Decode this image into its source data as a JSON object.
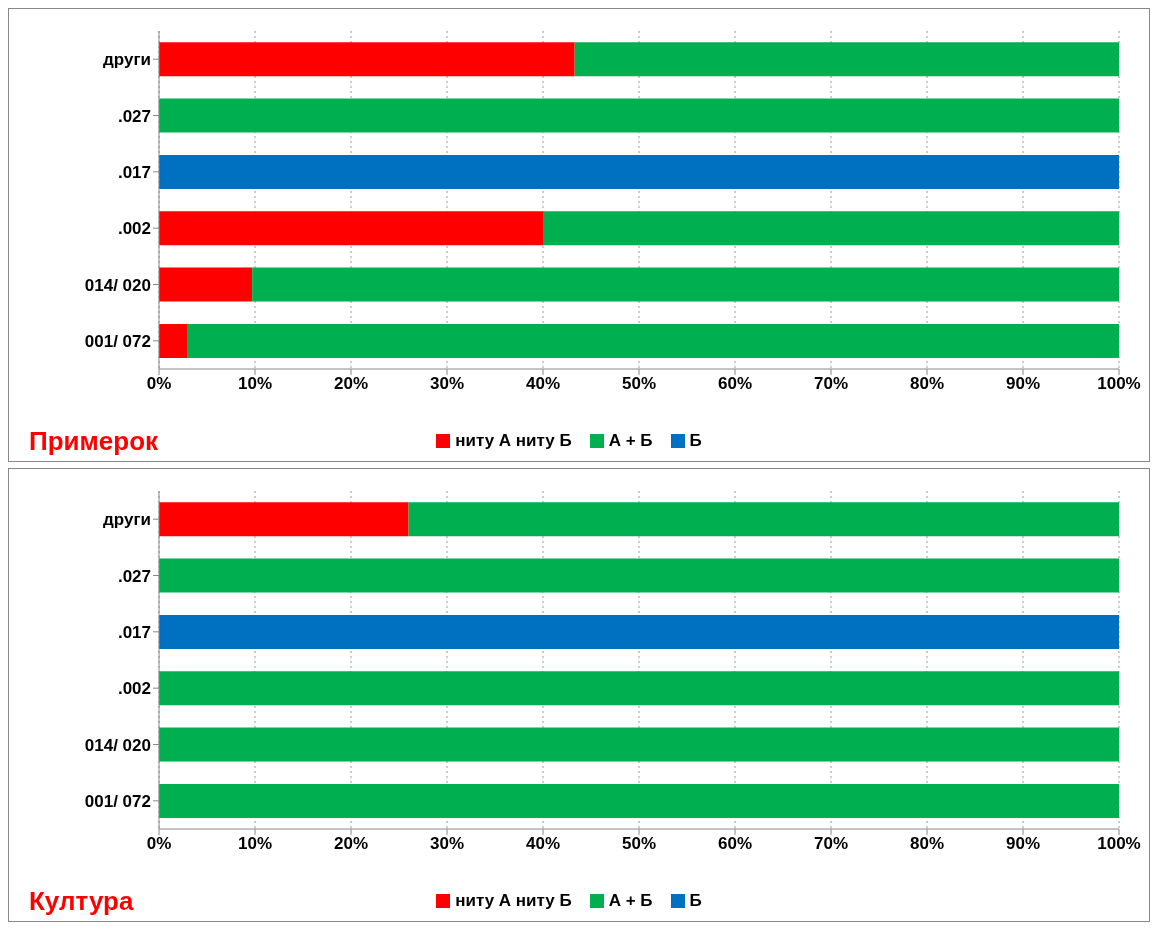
{
  "chart_data": [
    {
      "type": "bar",
      "title": "Примерок",
      "orientation": "horizontal",
      "stacked": true,
      "categories": [
        "други",
        ".027",
        ".017",
        ".002",
        "014/ 020",
        "001/ 072"
      ],
      "series": [
        {
          "name": "ниту А ниту Б",
          "color": "#ff0000",
          "values": [
            43.3,
            0,
            0,
            40,
            9.7,
            3
          ]
        },
        {
          "name": "А + Б",
          "color": "#00b050",
          "values": [
            56.7,
            100,
            0,
            60,
            90.3,
            97
          ]
        },
        {
          "name": "Б",
          "color": "#0070c0",
          "values": [
            0,
            0,
            100,
            0,
            0,
            0
          ]
        }
      ],
      "xlim": [
        0,
        100
      ],
      "xticks": [
        {
          "value": 0,
          "label": "0%"
        },
        {
          "value": 10,
          "label": "10%"
        },
        {
          "value": 20,
          "label": "20%"
        },
        {
          "value": 30,
          "label": "30%"
        },
        {
          "value": 40,
          "label": "40%"
        },
        {
          "value": 50,
          "label": "50%"
        },
        {
          "value": 60,
          "label": "60%"
        },
        {
          "value": 70,
          "label": "70%"
        },
        {
          "value": 80,
          "label": "80%"
        },
        {
          "value": 90,
          "label": "90%"
        },
        {
          "value": 100,
          "label": "100%"
        }
      ],
      "grid": "x",
      "legend": "bottom"
    },
    {
      "type": "bar",
      "title": "Култура",
      "orientation": "horizontal",
      "stacked": true,
      "categories": [
        "други",
        ".027",
        ".017",
        ".002",
        "014/ 020",
        "001/ 072"
      ],
      "series": [
        {
          "name": "ниту А ниту Б",
          "color": "#ff0000",
          "values": [
            26,
            0,
            0,
            0,
            0,
            0
          ]
        },
        {
          "name": "А + Б",
          "color": "#00b050",
          "values": [
            74,
            100,
            0,
            100,
            100,
            100
          ]
        },
        {
          "name": "Б",
          "color": "#0070c0",
          "values": [
            0,
            0,
            100,
            0,
            0,
            0
          ]
        }
      ],
      "xlim": [
        0,
        100
      ],
      "xticks": [
        {
          "value": 0,
          "label": "0%"
        },
        {
          "value": 10,
          "label": "10%"
        },
        {
          "value": 20,
          "label": "20%"
        },
        {
          "value": 30,
          "label": "30%"
        },
        {
          "value": 40,
          "label": "40%"
        },
        {
          "value": 50,
          "label": "50%"
        },
        {
          "value": 60,
          "label": "60%"
        },
        {
          "value": 70,
          "label": "70%"
        },
        {
          "value": 80,
          "label": "80%"
        },
        {
          "value": 90,
          "label": "90%"
        },
        {
          "value": 100,
          "label": "100%"
        }
      ],
      "grid": "x",
      "legend": "bottom"
    }
  ]
}
